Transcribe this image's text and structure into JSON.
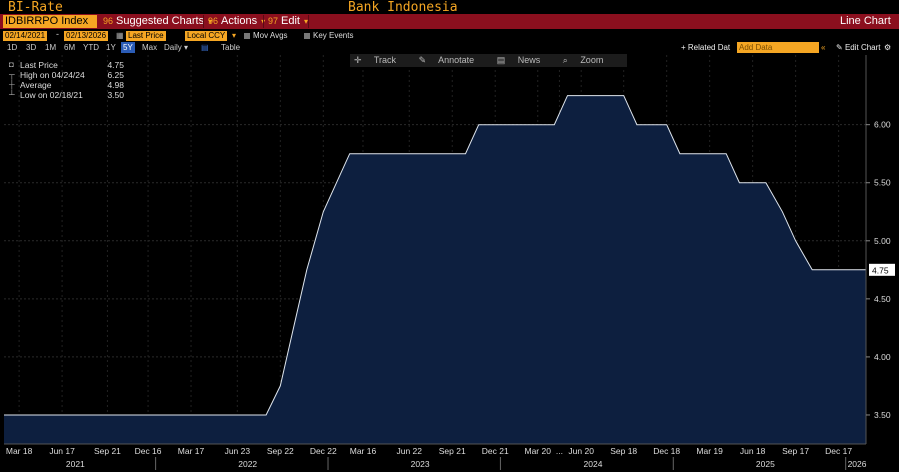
{
  "header": {
    "security_title": "BI-Rate",
    "center_title": "Bank Indonesia",
    "ticker": "IDBIRRPO Index",
    "menus": [
      {
        "num": "96",
        "label": "Suggested Charts"
      },
      {
        "num": "96",
        "label": "Actions"
      },
      {
        "num": "97",
        "label": "Edit"
      }
    ],
    "chart_type_label": "Line Chart"
  },
  "controls": {
    "start_date": "02/14/2021",
    "end_date": "02/13/2026",
    "price_field": "Last Price",
    "currency": "Local CCY",
    "mov_avgs": "Mov Avgs",
    "key_events": "Key Events",
    "ranges": [
      "1D",
      "3D",
      "1M",
      "6M",
      "YTD",
      "1Y",
      "5Y",
      "Max"
    ],
    "selected_range": "5Y",
    "frequency": "Daily",
    "table_label": "Table",
    "related_data": "Related Dat",
    "add_data_placeholder": "Add Data",
    "edit_chart": "Edit Chart"
  },
  "tools": [
    "Track",
    "Annotate",
    "News",
    "Zoom"
  ],
  "legend": [
    {
      "label": "Last Price",
      "value": "4.75",
      "icon": "square-icon"
    },
    {
      "label": "High on 04/24/24",
      "value": "6.25",
      "icon": "high-icon"
    },
    {
      "label": "Average",
      "value": "4.98",
      "icon": "average-icon"
    },
    {
      "label": "Low on 02/18/21",
      "value": "3.50",
      "icon": "low-icon"
    }
  ],
  "colors": {
    "accent": "#f5a623",
    "header_bar": "#8b0f1e",
    "area_fill": "#0d1f3f",
    "line": "#dfe6ee"
  },
  "chart_data": {
    "type": "area",
    "title": "Bank Indonesia",
    "last_value_label": "4.75",
    "ylim": [
      3.25,
      6.6
    ],
    "y_ticks": [
      3.5,
      4.0,
      4.5,
      5.0,
      5.5,
      6.0
    ],
    "y_tick_labels": [
      "3.50",
      "4.00",
      "4.50",
      "5.00",
      "5.50",
      "6.00"
    ],
    "x_range": [
      "2021-02-14",
      "2026-02-13"
    ],
    "x_ticks": [
      {
        "date": "2021-03-18",
        "label": "Mar 18"
      },
      {
        "date": "2021-06-17",
        "label": "Jun 17"
      },
      {
        "date": "2021-09-21",
        "label": "Sep 21"
      },
      {
        "date": "2021-12-16",
        "label": "Dec 16"
      },
      {
        "date": "2022-03-17",
        "label": "Mar 17"
      },
      {
        "date": "2022-06-23",
        "label": "Jun 23"
      },
      {
        "date": "2022-09-22",
        "label": "Sep 22"
      },
      {
        "date": "2022-12-22",
        "label": "Dec 22"
      },
      {
        "date": "2023-03-16",
        "label": "Mar 16"
      },
      {
        "date": "2023-06-22",
        "label": "Jun 22"
      },
      {
        "date": "2023-09-21",
        "label": "Sep 21"
      },
      {
        "date": "2023-12-21",
        "label": "Dec 21"
      },
      {
        "date": "2024-03-20",
        "label": "Mar 20"
      },
      {
        "date": "2024-05-05",
        "label": "..."
      },
      {
        "date": "2024-06-20",
        "label": "Jun 20"
      },
      {
        "date": "2024-09-18",
        "label": "Sep 18"
      },
      {
        "date": "2024-12-18",
        "label": "Dec 18"
      },
      {
        "date": "2025-03-19",
        "label": "Mar 19"
      },
      {
        "date": "2025-06-18",
        "label": "Jun 18"
      },
      {
        "date": "2025-09-17",
        "label": "Sep 17"
      },
      {
        "date": "2025-12-17",
        "label": "Dec 17"
      }
    ],
    "year_labels": [
      {
        "date": "2021-07-15",
        "label": "2021"
      },
      {
        "date": "2022-07-15",
        "label": "2022"
      },
      {
        "date": "2023-07-15",
        "label": "2023"
      },
      {
        "date": "2024-07-15",
        "label": "2024"
      },
      {
        "date": "2025-07-15",
        "label": "2025"
      },
      {
        "date": "2026-01-25",
        "label": "2026"
      }
    ],
    "series": [
      {
        "values": [
          [
            "2021-02-14",
            3.5
          ],
          [
            "2022-08-23",
            3.5
          ],
          [
            "2022-09-22",
            3.75
          ],
          [
            "2022-10-20",
            4.25
          ],
          [
            "2022-11-17",
            4.75
          ],
          [
            "2022-12-22",
            5.25
          ],
          [
            "2023-01-19",
            5.5
          ],
          [
            "2023-02-16",
            5.75
          ],
          [
            "2023-10-19",
            5.75
          ],
          [
            "2023-11-16",
            6.0
          ],
          [
            "2024-04-24",
            6.0
          ],
          [
            "2024-05-22",
            6.25
          ],
          [
            "2024-09-18",
            6.25
          ],
          [
            "2024-10-16",
            6.0
          ],
          [
            "2024-12-18",
            6.0
          ],
          [
            "2025-01-15",
            5.75
          ],
          [
            "2025-04-23",
            5.75
          ],
          [
            "2025-05-21",
            5.5
          ],
          [
            "2025-07-16",
            5.5
          ],
          [
            "2025-08-20",
            5.25
          ],
          [
            "2025-09-17",
            5.0
          ],
          [
            "2025-10-22",
            4.75
          ],
          [
            "2026-02-13",
            4.75
          ]
        ]
      }
    ]
  }
}
